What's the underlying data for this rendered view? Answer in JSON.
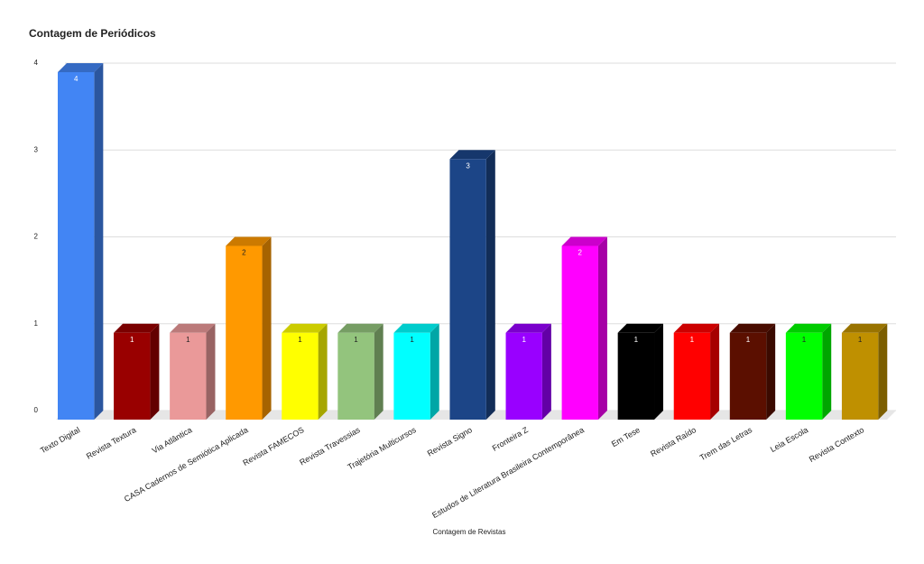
{
  "chart_data": {
    "type": "bar3d",
    "title": "Contagem de Periódicos",
    "x_label": "Contagem de Revistas",
    "categories": [
      "Texto Digital",
      "Revista Textura",
      "Via Atlântica",
      "CASA Cadernos de Semiótica Aplicada",
      "Revista FAMECOS",
      "Revista Travessias",
      "Trajetória Multicursos",
      "Revista Signo",
      "Fronteira Z",
      "Estudos de Literatura Brasileira Contemporânea",
      "Em Tese",
      "Revista Raído",
      "Trem das Letras",
      "Leia Escola",
      "Revista Contexto"
    ],
    "values": [
      4,
      1,
      1,
      2,
      1,
      1,
      1,
      3,
      1,
      2,
      1,
      1,
      1,
      1,
      1
    ],
    "colors": [
      "#4285f4",
      "#990000",
      "#ea9999",
      "#ff9900",
      "#ffff00",
      "#93c47d",
      "#00ffff",
      "#1c4587",
      "#9900ff",
      "#ff00ff",
      "#000000",
      "#ff0000",
      "#5b0f00",
      "#00ff00",
      "#bf9000"
    ],
    "ylim": [
      0,
      4
    ],
    "yticks": [
      0,
      1,
      2,
      3,
      4
    ],
    "grid": true
  }
}
